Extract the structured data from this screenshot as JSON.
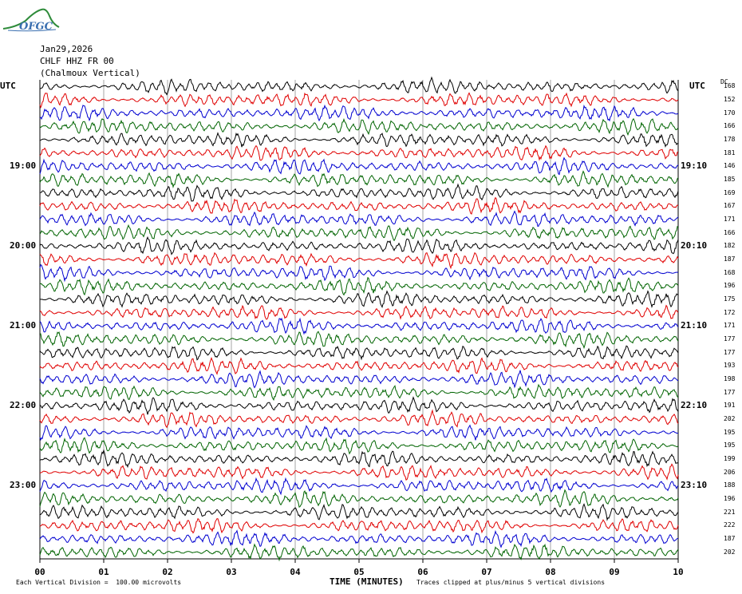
{
  "header": {
    "date": "Jan29,2026",
    "station": "CHLF HHZ FR 00",
    "location": "(Chalmoux Vertical)",
    "logo": "OFGC"
  },
  "utc_left": "UTC",
  "utc_right": "UTC",
  "dc_label": "DC",
  "left_time_labels": [
    "19:00",
    "20:00",
    "21:00",
    "22:00",
    "23:00"
  ],
  "right_time_labels": [
    "19:10",
    "20:10",
    "21:10",
    "22:10",
    "23:10"
  ],
  "x_axis_label": "TIME (MINUTES)",
  "footer_left": "Each Vertical Division =  100.00 microvolts",
  "footer_right": "Traces clipped at plus/minus 5 vertical divisions",
  "colors": {
    "black": "#000000",
    "red": "#e00000",
    "blue": "#0000d0",
    "green": "#006400",
    "grid": "#7f7f7f"
  },
  "chart_data": {
    "type": "line",
    "title": "CHLF HHZ FR 00 (Chalmoux Vertical)",
    "xlabel": "TIME (MINUTES)",
    "xlim": [
      0,
      10
    ],
    "x_ticks": [
      "00",
      "01",
      "02",
      "03",
      "04",
      "05",
      "06",
      "07",
      "08",
      "09",
      "10"
    ],
    "trace_count": 36,
    "trace_color_cycle": [
      "black",
      "red",
      "blue",
      "green"
    ],
    "trace_levels": [
      168,
      152,
      170,
      166,
      178,
      181,
      146,
      185,
      169,
      167,
      171,
      166,
      182,
      187,
      168,
      196,
      175,
      172,
      171,
      177,
      177,
      193,
      198,
      177,
      191,
      202,
      195,
      195,
      199,
      206,
      188,
      196,
      221,
      222,
      187,
      202
    ],
    "hour_marks": [
      {
        "left": "19:00",
        "right": "19:10",
        "trace_index": 6
      },
      {
        "left": "20:00",
        "right": "20:10",
        "trace_index": 12
      },
      {
        "left": "21:00",
        "right": "21:10",
        "trace_index": 18
      },
      {
        "left": "22:00",
        "right": "22:10",
        "trace_index": 24
      },
      {
        "left": "23:00",
        "right": "23:10",
        "trace_index": 30
      }
    ]
  }
}
